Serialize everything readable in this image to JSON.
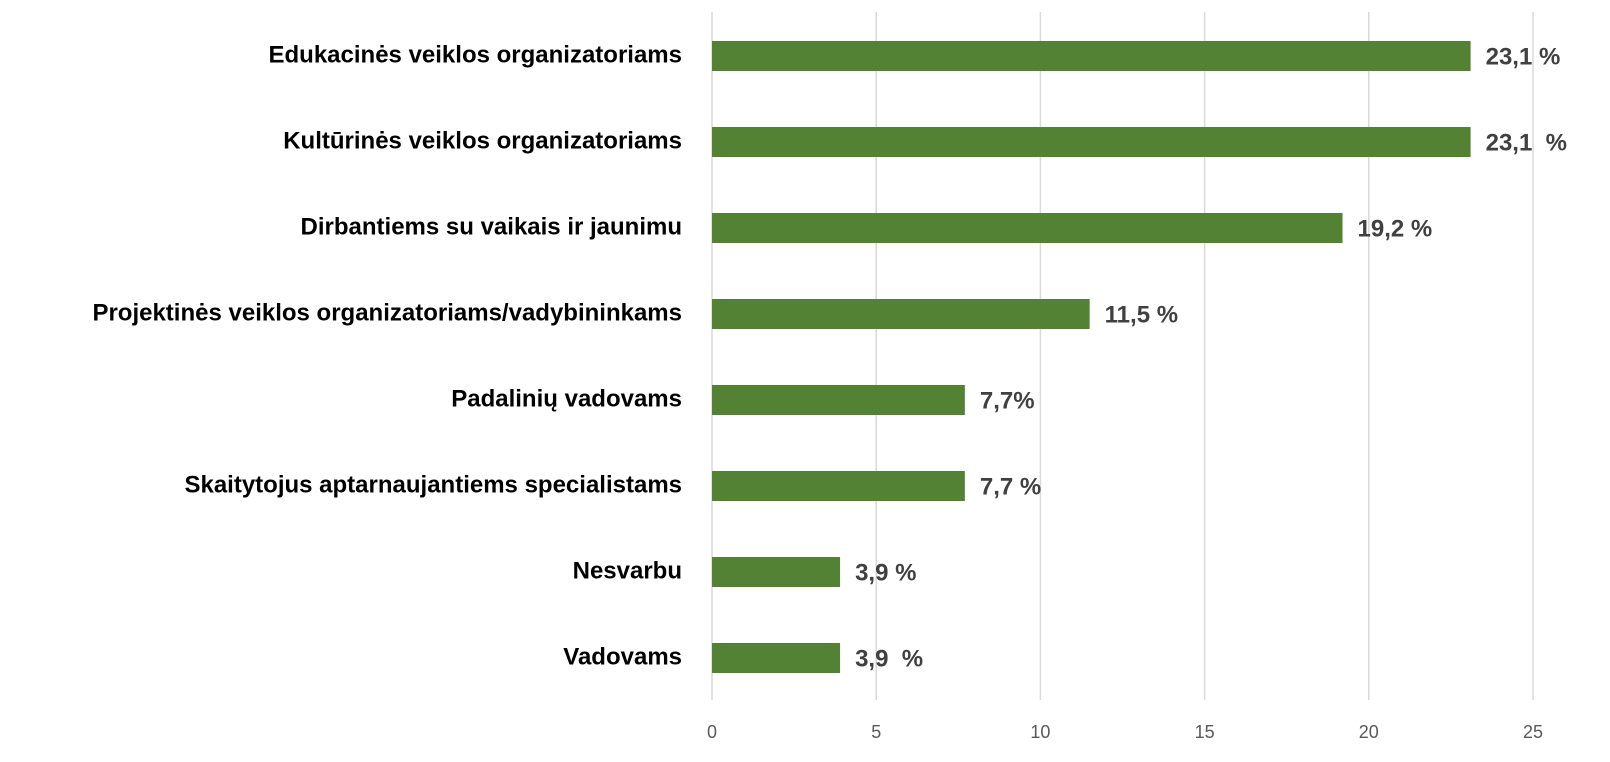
{
  "chart_data": {
    "type": "bar",
    "orientation": "horizontal",
    "categories": [
      "Edukacinės veiklos organizatoriams",
      "Kultūrinės veiklos organizatoriams",
      "Dirbantiems su vaikais ir jaunimu",
      "Projektinės veiklos organizatoriams/vadybininkams",
      "Padalinių vadovams",
      "Skaitytojus aptarnaujantiems specialistams",
      "Nesvarbu",
      "Vadovams"
    ],
    "values": [
      23.1,
      23.1,
      19.2,
      11.5,
      7.7,
      7.7,
      3.9,
      3.9
    ],
    "value_labels": [
      "23,1 %",
      "23,1  %",
      "19,2 %",
      "11,5 %",
      "7,7%",
      "7,7 %",
      "3,9 %",
      "3,9  %"
    ],
    "color": "#548235",
    "xlim": [
      0,
      25
    ],
    "xticks": [
      0,
      5,
      10,
      15,
      20,
      25
    ],
    "grid": true
  }
}
